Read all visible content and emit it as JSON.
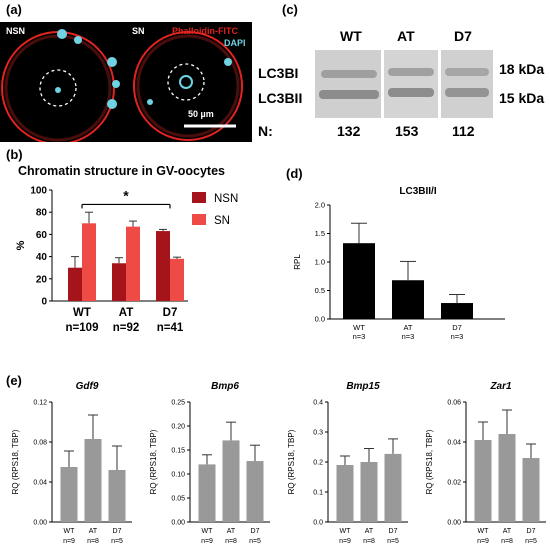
{
  "panels": {
    "a": "(a)",
    "b": "(b)",
    "c": "(c)",
    "d": "(d)",
    "e": "(e)"
  },
  "panel_a": {
    "left_label": "NSN",
    "right_label": "SN",
    "legend_1": "Phalloidin-FITC",
    "legend_2": "DAPI",
    "scale_bar": "50 µm",
    "colors": {
      "background": "#000000",
      "ring": "#e0241f",
      "chromatin": "#6fd3e3",
      "legend_1": "#e0241f",
      "legend_2": "#6fd3e3"
    }
  },
  "panel_c": {
    "lanes": [
      "WT",
      "AT",
      "D7"
    ],
    "band_1": "LC3BI",
    "band_2": "LC3BII",
    "mw_1": "18 kDa",
    "mw_2": "15 kDa",
    "n_label": "N:",
    "n_values": [
      "132",
      "153",
      "112"
    ]
  },
  "chart_data": [
    {
      "id": "b",
      "type": "bar",
      "title": "Chromatin structure in GV-oocytes",
      "ylabel": "%",
      "categories": [
        "WT",
        "AT",
        "D7"
      ],
      "category_n": [
        "n=109",
        "n=92",
        "n=41"
      ],
      "ylim": [
        0,
        100
      ],
      "yticks": [
        0,
        20,
        40,
        60,
        80,
        100
      ],
      "series": [
        {
          "name": "NSN",
          "values": [
            30,
            34,
            63
          ],
          "errors": [
            10,
            5,
            1.5
          ],
          "color": "#a5141a"
        },
        {
          "name": "SN",
          "values": [
            70,
            67,
            38
          ],
          "errors": [
            10,
            5,
            1.5
          ],
          "color": "#ee4b47"
        }
      ],
      "significance": "*",
      "legend_position": "right"
    },
    {
      "id": "d",
      "type": "bar",
      "title": "LC3BII/I",
      "ylabel": "RPL",
      "categories": [
        "WT",
        "AT",
        "D7"
      ],
      "category_n": [
        "n=3",
        "n=3",
        "n=3"
      ],
      "ylim": [
        0,
        2.0
      ],
      "yticks": [
        "0.0",
        "0.5",
        "1.0",
        "1.5",
        "2.0"
      ],
      "values": [
        1.33,
        0.68,
        0.28
      ],
      "errors": [
        0.35,
        0.33,
        0.15
      ],
      "color": "#000000"
    },
    {
      "id": "e1",
      "type": "bar",
      "title": "Gdf9",
      "ylabel": "RQ (RPS18, TBP)",
      "categories": [
        "WT",
        "AT",
        "D7"
      ],
      "category_n": [
        "n=9",
        "n=8",
        "n=5"
      ],
      "ylim": [
        0,
        0.12
      ],
      "yticks": [
        "0.00",
        "0.04",
        "0.08",
        "0.12"
      ],
      "values": [
        0.055,
        0.083,
        0.052
      ],
      "errors": [
        0.016,
        0.024,
        0.024
      ],
      "color": "#999999"
    },
    {
      "id": "e2",
      "type": "bar",
      "title": "Bmp6",
      "ylabel": "RQ (RPS18, TBP)",
      "categories": [
        "WT",
        "AT",
        "D7"
      ],
      "category_n": [
        "n=9",
        "n=8",
        "n=5"
      ],
      "ylim": [
        0,
        0.25
      ],
      "yticks": [
        "0.00",
        "0.05",
        "0.10",
        "0.15",
        "0.20",
        "0.25"
      ],
      "values": [
        0.12,
        0.17,
        0.127
      ],
      "errors": [
        0.02,
        0.038,
        0.033
      ],
      "color": "#999999"
    },
    {
      "id": "e3",
      "type": "bar",
      "title": "Bmp15",
      "ylabel": "RQ (RPS18, TBP)",
      "categories": [
        "WT",
        "AT",
        "D7"
      ],
      "category_n": [
        "n=9",
        "n=8",
        "n=5"
      ],
      "ylim": [
        0,
        0.4
      ],
      "yticks": [
        "0.0",
        "0.1",
        "0.2",
        "0.3",
        "0.4"
      ],
      "values": [
        0.19,
        0.2,
        0.227
      ],
      "errors": [
        0.03,
        0.045,
        0.05
      ],
      "color": "#999999"
    },
    {
      "id": "e4",
      "type": "bar",
      "title": "Zar1",
      "ylabel": "RQ (RPS18, TBP)",
      "categories": [
        "WT",
        "AT",
        "D7"
      ],
      "category_n": [
        "n=9",
        "n=8",
        "n=5"
      ],
      "ylim": [
        0,
        0.06
      ],
      "yticks": [
        "0.00",
        "0.02",
        "0.04",
        "0.06"
      ],
      "values": [
        0.041,
        0.044,
        0.032
      ],
      "errors": [
        0.009,
        0.012,
        0.007
      ],
      "color": "#999999"
    }
  ]
}
